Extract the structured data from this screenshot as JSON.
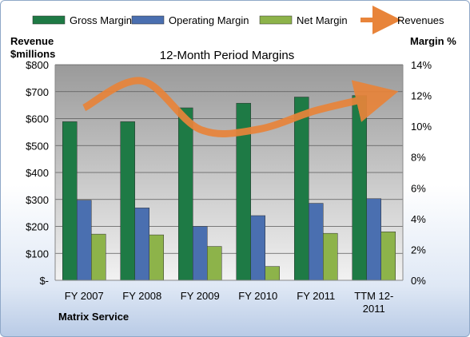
{
  "chart_data": {
    "type": "bar",
    "title": "12-Month Period Margins",
    "left_axis_title": [
      "Revenue",
      "$millions"
    ],
    "right_axis_title": "Margin %",
    "footer_label": "Matrix Service",
    "categories": [
      "FY 2007",
      "FY 2008",
      "FY 2009",
      "FY 2010",
      "FY 2011",
      "TTM 12-\n2011"
    ],
    "y_left": {
      "min": 0,
      "max": 800,
      "ticks": [
        "$-",
        "$100",
        "$200",
        "$300",
        "$400",
        "$500",
        "$600",
        "$700",
        "$800"
      ]
    },
    "y_right": {
      "min": 0,
      "max": 14,
      "ticks": [
        "0%",
        "2%",
        "4%",
        "6%",
        "8%",
        "10%",
        "12%",
        "14%"
      ]
    },
    "grid": true,
    "legend_position": "top",
    "series": [
      {
        "name": "Gross Margin",
        "color": "#1e7a45",
        "axis": "right",
        "values": [
          10.3,
          10.3,
          11.2,
          11.5,
          11.9,
          12.0
        ]
      },
      {
        "name": "Operating Margin",
        "color": "#4a6fb0",
        "axis": "right",
        "values": [
          5.2,
          4.7,
          3.5,
          4.2,
          5.0,
          5.3
        ]
      },
      {
        "name": "Net Margin",
        "color": "#8db34a",
        "axis": "right",
        "values": [
          3.0,
          2.95,
          2.2,
          0.9,
          3.05,
          3.15
        ]
      },
      {
        "name": "Revenues",
        "color": "#e8843a",
        "axis": "left",
        "type": "line",
        "values": [
          640,
          740,
          560,
          560,
          630,
          680
        ]
      }
    ]
  }
}
